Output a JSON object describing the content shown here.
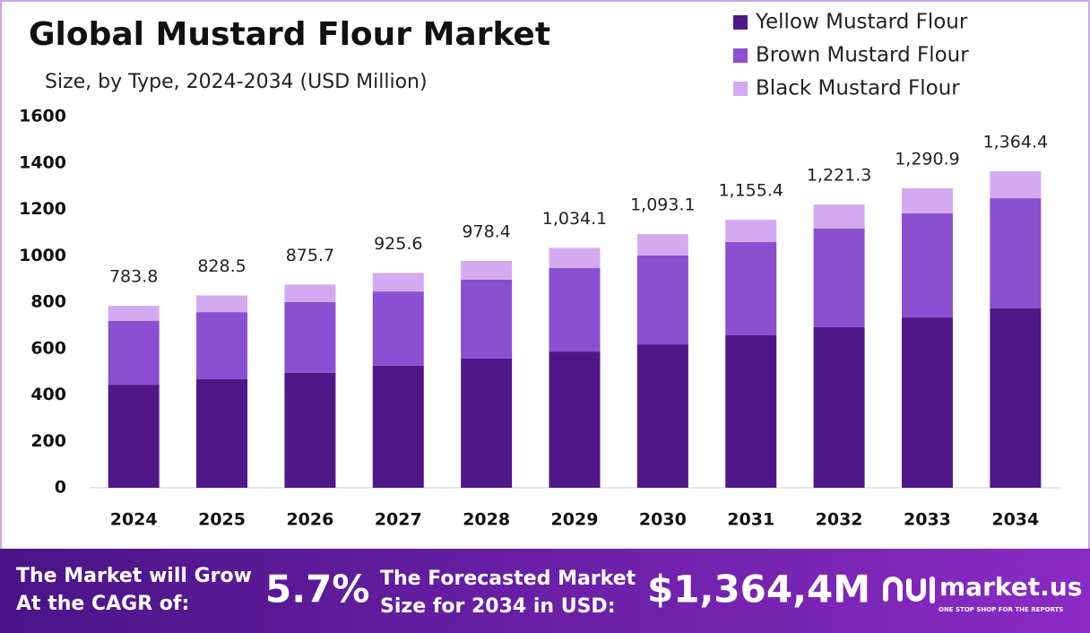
{
  "chart_data": {
    "type": "stacked-bar",
    "title": "Global Mustard Flour Market",
    "subtitle": "Size, by Type, 2024-2034 (USD Million)",
    "categories": [
      "2024",
      "2025",
      "2026",
      "2027",
      "2028",
      "2029",
      "2030",
      "2031",
      "2032",
      "2033",
      "2034"
    ],
    "series": [
      {
        "name": "Yellow Mustard Flour",
        "color": "#4f1787",
        "values": [
          444,
          468,
          495,
          526,
          557,
          587,
          618,
          657,
          692,
          734,
          773
        ]
      },
      {
        "name": "Brown Mustard Flour",
        "color": "#8b4fd1",
        "values": [
          275,
          289,
          305,
          320,
          340,
          360,
          383,
          402,
          425,
          449,
          475
        ]
      },
      {
        "name": "Black Mustard Flour",
        "color": "#d3aaf0",
        "values": [
          65,
          72,
          76,
          80,
          81,
          87,
          92,
          96,
          104,
          108,
          116
        ]
      }
    ],
    "totals": [
      783.8,
      828.5,
      875.7,
      925.6,
      978.4,
      1034.1,
      1093.1,
      1155.4,
      1221.3,
      1290.9,
      1364.4
    ],
    "total_labels": [
      "783.8",
      "828.5",
      "875.7",
      "925.6",
      "978.4",
      "1,034.1",
      "1,093.1",
      "1,155.4",
      "1,221.3",
      "1,290.9",
      "1,364.4"
    ],
    "ylim": [
      0,
      1600
    ],
    "yticks": [
      0,
      200,
      400,
      600,
      800,
      1000,
      1200,
      1400,
      1600
    ],
    "grid": false,
    "legend": "top-right"
  },
  "footer": {
    "cagr_text": [
      "The Market will Grow",
      "At the CAGR of:"
    ],
    "cagr": "5.7%",
    "forecast_text": [
      "The Forecasted Market",
      "Size for 2034 in USD:"
    ],
    "forecast": "$1,364,4M",
    "brand": "market.us",
    "tagline": "ONE STOP SHOP FOR THE REPORTS"
  }
}
